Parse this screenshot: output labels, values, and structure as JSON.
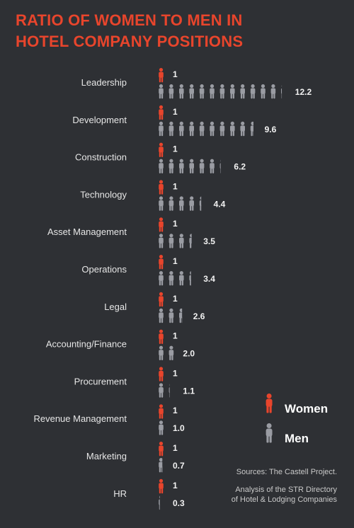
{
  "title_lines": [
    "RATIO OF WOMEN TO MEN IN",
    "HOTEL COMPANY POSITIONS"
  ],
  "colors": {
    "women": "#e8452c",
    "men": "#9a9ca3",
    "background": "#2e3034"
  },
  "chart_data": {
    "type": "pictograph",
    "categories": [
      "Leadership",
      "Development",
      "Construction",
      "Technology",
      "Asset Management",
      "Operations",
      "Legal",
      "Accounting/Finance",
      "Procurement",
      "Revenue Management",
      "Marketing",
      "HR"
    ],
    "series": [
      {
        "name": "Women",
        "values": [
          1,
          1,
          1,
          1,
          1,
          1,
          1,
          1,
          1,
          1,
          1,
          1
        ],
        "labels": [
          "1",
          "1",
          "1",
          "1",
          "1",
          "1",
          "1",
          "1",
          "1",
          "1",
          "1",
          "1"
        ]
      },
      {
        "name": "Men",
        "values": [
          12.2,
          9.6,
          6.2,
          4.4,
          3.5,
          3.4,
          2.6,
          2.0,
          1.1,
          1.0,
          0.7,
          0.3
        ],
        "labels": [
          "12.2",
          "9.6",
          "6.2",
          "4.4",
          "3.5",
          "3.4",
          "2.6",
          "2.0",
          "1.1",
          "1.0",
          "0.7",
          "0.3"
        ]
      }
    ]
  },
  "legend": {
    "women_label": "Women",
    "men_label": "Men"
  },
  "sources": {
    "line1": "Sources: The Castell Project.",
    "line2": "Analysis of the STR Directory",
    "line3": "of Hotel & Lodging Companies"
  }
}
